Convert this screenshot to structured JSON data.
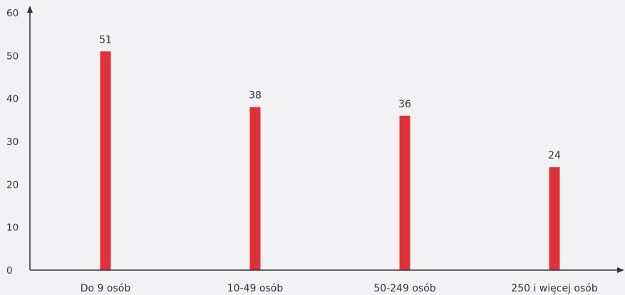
{
  "chart_data": {
    "type": "bar",
    "title": "",
    "xlabel": "",
    "ylabel": "",
    "categories": [
      "Do 9 osób",
      "10-49 osób",
      "50-249 osób",
      "250 i więcej osób"
    ],
    "values": [
      51,
      38,
      36,
      24
    ],
    "value_labels": [
      "51",
      "38",
      "36",
      "24"
    ],
    "ylim": [
      0,
      60
    ],
    "yticks": [
      "0",
      "10",
      "20",
      "30",
      "40",
      "50",
      "60"
    ],
    "grid": false,
    "legend": "none",
    "colors": {
      "bar": "#e0303a",
      "axis": "#333333",
      "text": "#333333",
      "background": "#f2f2f4"
    }
  }
}
